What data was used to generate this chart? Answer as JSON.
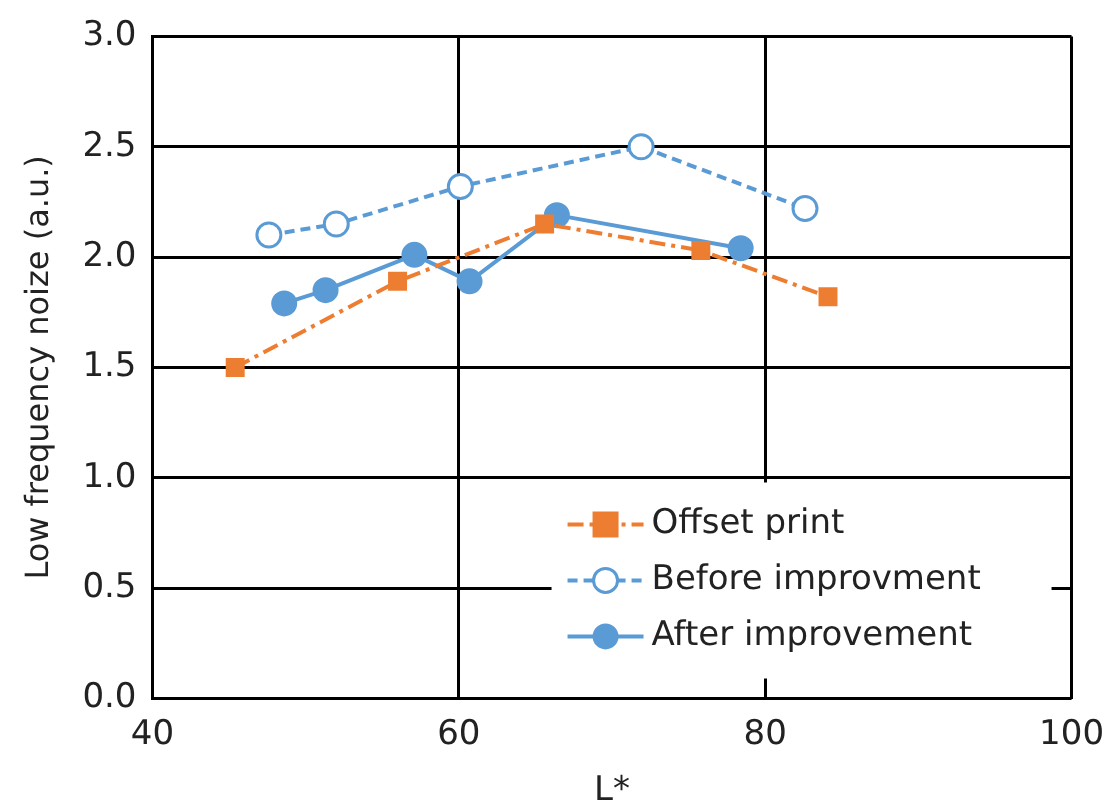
{
  "chart_data": {
    "type": "line",
    "xlabel": "L*",
    "ylabel": "Low frequency noize (a.u.)",
    "xlim": [
      40,
      100
    ],
    "xticks": [
      40,
      60,
      80,
      100
    ],
    "ylim": [
      0,
      3
    ],
    "yticks": [
      {
        "value": 0,
        "label": "0.0"
      },
      0.5,
      {
        "value": 1,
        "label": "1.0"
      },
      1.5,
      {
        "value": 2,
        "label": "2.0"
      },
      2.5,
      {
        "value": 3,
        "label": "3.0"
      }
    ],
    "grid": true,
    "legend": "bottom right",
    "series": [
      {
        "name": "Offset print",
        "color": "#ed7d31",
        "marker": "square",
        "line_style": "dashed",
        "x": [
          45.4,
          56,
          65.6,
          75.8,
          84.1
        ],
        "values": [
          1.5,
          1.89,
          2.15,
          2.03,
          1.82
        ]
      },
      {
        "name": "Before improvment",
        "color": "#5b9bd5",
        "marker": "circle",
        "line_style": "dashed",
        "x": [
          47.6,
          52,
          60.1,
          71.9,
          82.6
        ],
        "values": [
          2.1,
          2.15,
          2.32,
          2.5,
          2.22
        ]
      },
      {
        "name": "After improvement",
        "color": "#5b9bd5",
        "marker": "circle",
        "line_style": "solid",
        "x": [
          48.6,
          51.3,
          57.1,
          60.7,
          66.4,
          78.4
        ],
        "values": [
          1.79,
          1.85,
          2.01,
          1.89,
          2.19,
          2.04
        ]
      }
    ]
  }
}
